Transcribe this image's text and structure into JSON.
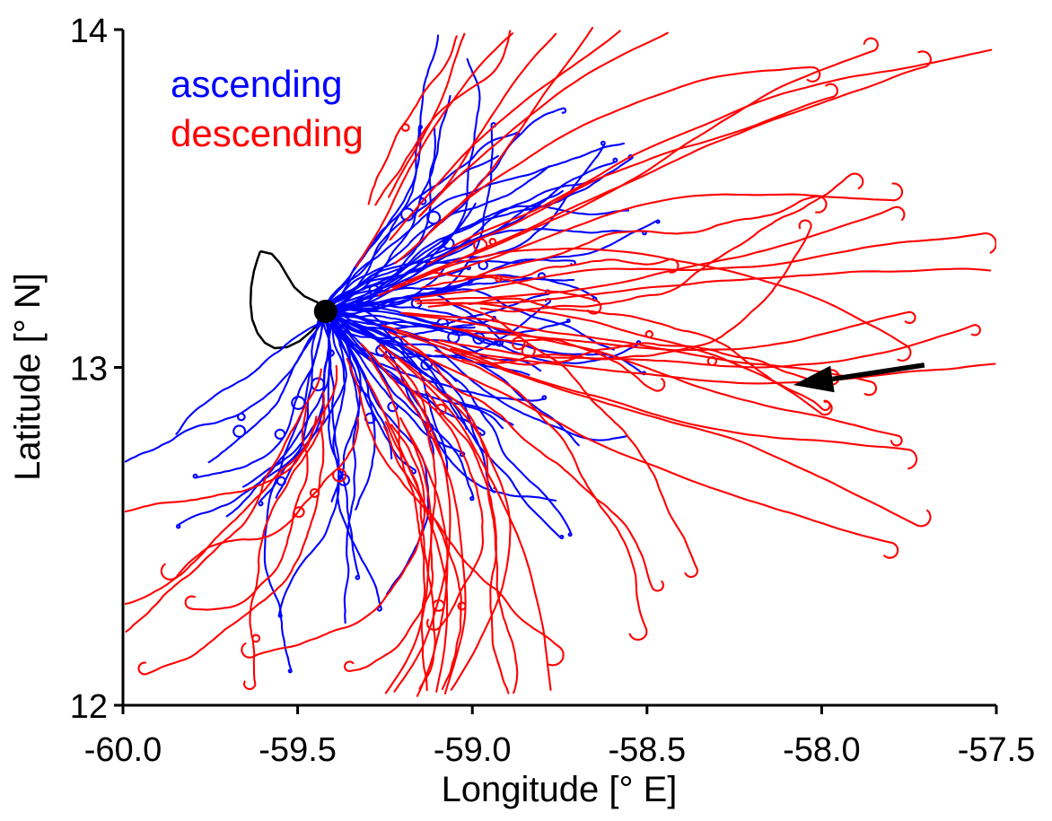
{
  "figure": {
    "background": "#ffffff"
  },
  "chart_data": {
    "type": "line",
    "title": "",
    "description": "Map of ascending (blue) and descending (red) sounding trajectories fanning out east of Barbados; black dot marks the launch site on the island's east coast; black arrow indicates the easterly trade-wind inflow.",
    "xlabel": "Longitude [° E]",
    "ylabel": "Latitude [° N]",
    "xlim": [
      -60.0,
      -57.5
    ],
    "ylim": [
      12,
      14
    ],
    "x_ticks": [
      -60.0,
      -59.5,
      -59.0,
      -58.5,
      -58.0,
      -57.5
    ],
    "x_tick_labels": [
      "-60.0",
      "-59.5",
      "-59.0",
      "-58.5",
      "-58.0",
      "-57.5"
    ],
    "y_ticks": [
      12,
      13,
      14
    ],
    "y_tick_labels": [
      "12",
      "13",
      "14"
    ],
    "grid": false,
    "axis_color": "#000000",
    "legend": {
      "location": "upper left",
      "entries": [
        {
          "label": "ascending",
          "color": "#0000ff"
        },
        {
          "label": "descending",
          "color": "#ff0000"
        }
      ]
    },
    "launch_site": {
      "name": "launch-site",
      "lon": -59.42,
      "lat": 13.166,
      "marker": "filled-circle",
      "color": "#000000",
      "radius_px": 13
    },
    "island_outline": {
      "name": "Barbados coastline",
      "color": "#000000",
      "points": [
        [
          -59.607,
          13.344
        ],
        [
          -59.574,
          13.336
        ],
        [
          -59.551,
          13.309
        ],
        [
          -59.53,
          13.272
        ],
        [
          -59.51,
          13.238
        ],
        [
          -59.481,
          13.211
        ],
        [
          -59.448,
          13.195
        ],
        [
          -59.422,
          13.182
        ],
        [
          -59.407,
          13.166
        ],
        [
          -59.432,
          13.139
        ],
        [
          -59.461,
          13.107
        ],
        [
          -59.494,
          13.078
        ],
        [
          -59.53,
          13.06
        ],
        [
          -59.566,
          13.057
        ],
        [
          -59.594,
          13.073
        ],
        [
          -59.615,
          13.102
        ],
        [
          -59.63,
          13.142
        ],
        [
          -59.635,
          13.19
        ],
        [
          -59.633,
          13.238
        ],
        [
          -59.625,
          13.285
        ],
        [
          -59.615,
          13.32
        ],
        [
          -59.607,
          13.344
        ]
      ]
    },
    "wind_arrow": {
      "tail": [
        -57.706,
        13.007
      ],
      "head": [
        -58.081,
        12.948
      ],
      "color": "#000000"
    },
    "series": [
      {
        "name": "ascending",
        "color": "#0000ff",
        "count": 74,
        "origin": [
          -59.42,
          13.166
        ],
        "seed": 11,
        "line_width": 2.1,
        "start_offset_deg": [
          0.0,
          0.01
        ],
        "sectors": [
          {
            "count": 16,
            "angle_deg": [
              20,
              52
            ],
            "length_deg": [
              0.45,
              1.05
            ]
          },
          {
            "count": 20,
            "angle_deg": [
              -12,
              20
            ],
            "length_deg": [
              0.4,
              0.95
            ]
          },
          {
            "count": 24,
            "angle_deg": [
              -60,
              -12
            ],
            "length_deg": [
              0.45,
              1.0
            ]
          },
          {
            "count": 9,
            "angle_deg": [
              -88,
              -60
            ],
            "length_deg": [
              0.5,
              1.1
            ],
            "end_heading_deg": [
              -95,
              -130
            ]
          },
          {
            "count": 5,
            "angle_deg": [
              -130,
              -95
            ],
            "length_deg": [
              0.45,
              0.9
            ],
            "end_heading_deg": [
              -100,
              -150
            ]
          }
        ]
      },
      {
        "name": "descending",
        "color": "#ff0000",
        "count": 61,
        "origin": [
          -59.42,
          13.166
        ],
        "seed": 23,
        "line_width": 2.1,
        "start_offset_deg": [
          0.15,
          0.45
        ],
        "sectors": [
          {
            "count": 7,
            "angle_deg": [
              26,
              50
            ],
            "length_deg": [
              1.2,
              2.05
            ],
            "hook": true
          },
          {
            "count": 4,
            "angle_deg": [
              50,
              70
            ],
            "length_deg": [
              0.85,
              1.3
            ],
            "hook": true
          },
          {
            "count": 11,
            "angle_deg": [
              2,
              26
            ],
            "length_deg": [
              1.1,
              1.8
            ],
            "hook": true
          },
          {
            "count": 13,
            "angle_deg": [
              -28,
              2
            ],
            "length_deg": [
              0.9,
              1.65
            ],
            "hook": true
          },
          {
            "count": 16,
            "angle_deg": [
              -70,
              -28
            ],
            "length_deg": [
              0.8,
              1.5
            ],
            "end_heading_deg": [
              -100,
              -150
            ],
            "hook": true
          },
          {
            "count": 7,
            "angle_deg": [
              -105,
              -70
            ],
            "length_deg": [
              0.6,
              1.1
            ],
            "end_heading_deg": [
              -120,
              -170
            ],
            "hook": true
          },
          {
            "count": 3,
            "angle_deg": [
              -20,
              30
            ],
            "length_deg": [
              0.5,
              0.9
            ],
            "hook": true
          }
        ]
      }
    ]
  }
}
